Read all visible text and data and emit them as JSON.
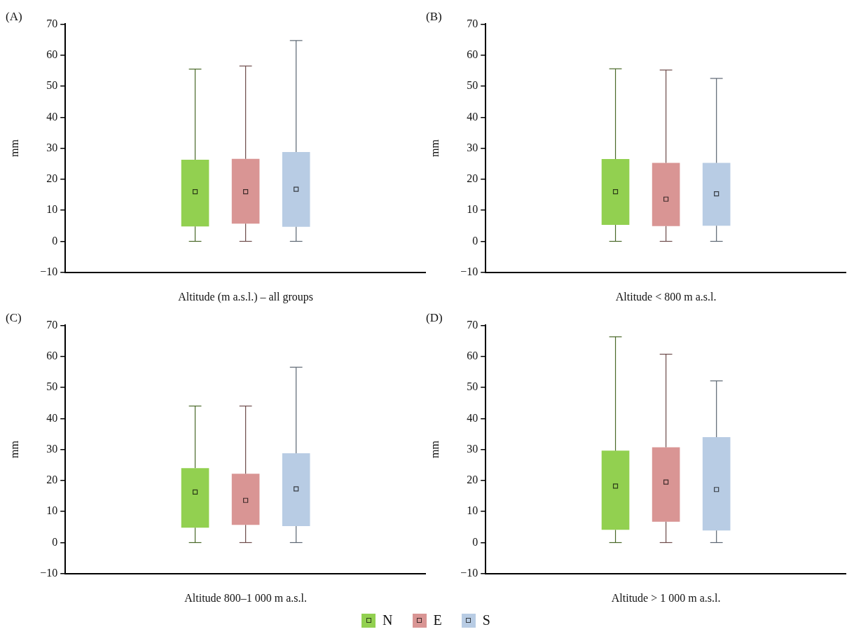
{
  "chart_data": [
    {
      "type": "box",
      "title": "(A)",
      "xlabel": "Altitude (m a.s.l.) – all groups",
      "ylabel": "mm",
      "categories": [
        null
      ],
      "ylim": [
        -10,
        70
      ],
      "yticks": [
        -10,
        0,
        10,
        20,
        30,
        40,
        50,
        60,
        70
      ],
      "legend": "bottom",
      "series": [
        {
          "name": "N",
          "color": "#92d050",
          "boxes": [
            {
              "low": 0,
              "q1": 4.8,
              "median": 16,
              "q3": 26.3,
              "high": 55.5
            }
          ]
        },
        {
          "name": "E",
          "color": "#d99594",
          "boxes": [
            {
              "low": 0,
              "q1": 5.7,
              "median": 16,
              "q3": 26.6,
              "high": 56.5
            }
          ]
        },
        {
          "name": "S",
          "color": "#b8cce4",
          "boxes": [
            {
              "low": 0,
              "q1": 4.7,
              "median": 16.8,
              "q3": 28.8,
              "high": 64.7
            }
          ]
        }
      ]
    },
    {
      "type": "box",
      "title": "(B)",
      "xlabel": "Altitude < 800 m a.s.l.",
      "ylabel": "mm",
      "categories": [
        null
      ],
      "ylim": [
        -10,
        70
      ],
      "yticks": [
        -10,
        0,
        10,
        20,
        30,
        40,
        50,
        60,
        70
      ],
      "series": [
        {
          "color": "#92d050",
          "boxes": [
            {
              "low": 0,
              "q1": 5.3,
              "median": 16,
              "q3": 26.5,
              "high": 55.6
            }
          ]
        },
        {
          "color": "#d99594",
          "boxes": [
            {
              "low": 0,
              "q1": 4.9,
              "median": 13.6,
              "q3": 25.3,
              "high": 55.2
            }
          ]
        },
        {
          "color": "#b8cce4",
          "boxes": [
            {
              "low": 0,
              "q1": 5,
              "median": 15.3,
              "q3": 25.3,
              "high": 52.5
            }
          ]
        }
      ]
    },
    {
      "type": "box",
      "title": "(C)",
      "xlabel": "Altitude 800–1 000 m a.s.l.",
      "ylabel": "mm",
      "categories": [
        null
      ],
      "ylim": [
        -10,
        70
      ],
      "yticks": [
        -10,
        0,
        10,
        20,
        30,
        40,
        50,
        60,
        70
      ],
      "series": [
        {
          "color": "#92d050",
          "boxes": [
            {
              "low": 0,
              "q1": 4.8,
              "median": 16.3,
              "q3": 24,
              "high": 44
            }
          ]
        },
        {
          "color": "#d99594",
          "boxes": [
            {
              "low": 0,
              "q1": 5.7,
              "median": 13.6,
              "q3": 22.2,
              "high": 44
            }
          ]
        },
        {
          "color": "#b8cce4",
          "boxes": [
            {
              "low": 0,
              "q1": 5.3,
              "median": 17.3,
              "q3": 28.8,
              "high": 56.5
            }
          ]
        }
      ]
    },
    {
      "type": "box",
      "title": "(D)",
      "xlabel": "Altitude > 1 000 m a.s.l.",
      "ylabel": "mm",
      "categories": [
        null
      ],
      "ylim": [
        -10,
        70
      ],
      "yticks": [
        -10,
        0,
        10,
        20,
        30,
        40,
        50,
        60,
        70
      ],
      "series": [
        {
          "color": "#92d050",
          "boxes": [
            {
              "low": 0,
              "q1": 4.1,
              "median": 18.2,
              "q3": 29.6,
              "high": 66.3
            }
          ]
        },
        {
          "color": "#d99594",
          "boxes": [
            {
              "low": 0,
              "q1": 6.7,
              "median": 19.5,
              "q3": 30.7,
              "high": 60.7
            }
          ]
        },
        {
          "color": "#b8cce4",
          "boxes": [
            {
              "low": 0,
              "q1": 3.9,
              "median": 17.1,
              "q3": 34,
              "high": 52.1
            }
          ]
        }
      ]
    }
  ]
}
